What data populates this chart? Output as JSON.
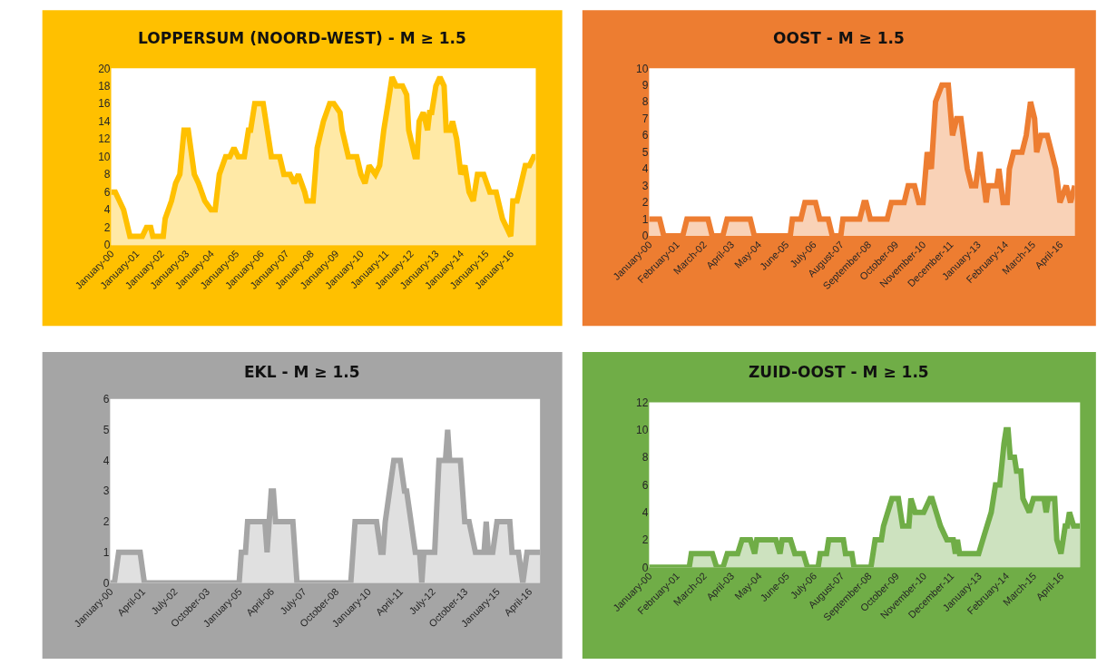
{
  "chart_data": [
    {
      "type": "area",
      "title": "LOPPERSUM (NOORD-WEST) - M ≥ 1.5",
      "xlim": [
        "2000-01",
        "2017-01"
      ],
      "ylim": [
        0,
        20
      ],
      "yticks": [
        0,
        2,
        4,
        6,
        8,
        10,
        12,
        14,
        16,
        18,
        20
      ],
      "xticks": [
        {
          "value": "2000-01",
          "label": "January-00"
        },
        {
          "value": "2001-01",
          "label": "January-01"
        },
        {
          "value": "2002-01",
          "label": "January-02"
        },
        {
          "value": "2003-01",
          "label": "January-03"
        },
        {
          "value": "2004-01",
          "label": "January-04"
        },
        {
          "value": "2005-01",
          "label": "January-05"
        },
        {
          "value": "2006-01",
          "label": "January-06"
        },
        {
          "value": "2007-01",
          "label": "January-07"
        },
        {
          "value": "2008-01",
          "label": "January-08"
        },
        {
          "value": "2009-01",
          "label": "January-09"
        },
        {
          "value": "2010-01",
          "label": "January-10"
        },
        {
          "value": "2011-01",
          "label": "January-11"
        },
        {
          "value": "2012-01",
          "label": "January-12"
        },
        {
          "value": "2013-01",
          "label": "January-13"
        },
        {
          "value": "2014-01",
          "label": "January-14"
        },
        {
          "value": "2015-01",
          "label": "January-15"
        },
        {
          "value": "2016-01",
          "label": "January-16"
        }
      ],
      "series": [
        {
          "color": "#ffc000",
          "x": [
            "2000-01",
            "2000-03",
            "2000-07",
            "2000-10",
            "2001-04",
            "2001-06",
            "2001-08",
            "2001-09",
            "2002-02",
            "2002-03",
            "2002-06",
            "2002-08",
            "2002-10",
            "2002-12",
            "2003-02",
            "2003-05",
            "2003-07",
            "2003-10",
            "2004-01",
            "2004-03",
            "2004-05",
            "2004-08",
            "2004-10",
            "2004-12",
            "2005-02",
            "2005-05",
            "2005-07",
            "2005-08",
            "2005-10",
            "2006-02",
            "2006-06",
            "2006-10",
            "2006-12",
            "2007-03",
            "2007-05",
            "2007-07",
            "2007-10",
            "2007-11",
            "2008-02",
            "2008-04",
            "2008-07",
            "2008-10",
            "2008-12",
            "2009-03",
            "2009-04",
            "2009-07",
            "2009-11",
            "2010-01",
            "2010-03",
            "2010-05",
            "2010-08",
            "2010-10",
            "2010-12",
            "2011-02",
            "2011-04",
            "2011-06",
            "2011-09",
            "2011-11",
            "2011-12",
            "2012-03",
            "2012-04",
            "2012-05",
            "2012-07",
            "2012-09",
            "2012-10",
            "2012-11",
            "2013-01",
            "2013-03",
            "2013-05",
            "2013-06",
            "2013-08",
            "2013-09",
            "2013-11",
            "2014-01",
            "2014-03",
            "2014-05",
            "2014-07",
            "2014-09",
            "2014-12",
            "2015-03",
            "2015-06",
            "2015-09",
            "2015-11",
            "2016-01",
            "2016-02",
            "2016-04",
            "2016-06",
            "2016-08",
            "2016-10",
            "2016-12",
            "2017-01"
          ],
          "values": [
            6,
            6,
            4,
            1,
            1,
            2,
            2,
            1,
            1,
            3,
            5,
            7,
            8,
            13,
            13,
            8,
            7,
            5,
            4,
            4,
            8,
            10,
            10,
            11,
            10,
            10,
            13,
            13,
            16,
            16,
            10,
            10,
            8,
            8,
            7,
            8,
            6,
            5,
            5,
            11,
            14,
            16,
            16,
            15,
            13,
            10,
            10,
            8,
            7,
            9,
            8,
            9,
            13,
            16,
            19,
            18,
            18,
            17,
            13,
            10,
            10,
            14,
            15,
            13,
            15,
            15,
            18,
            19,
            18,
            13,
            13,
            14,
            12,
            8,
            9,
            6,
            5,
            8,
            8,
            6,
            6,
            3,
            2,
            1,
            5,
            5,
            7,
            9,
            9,
            10,
            10
          ]
        }
      ]
    },
    {
      "type": "area",
      "title": "OOST - M ≥ 1.5",
      "xlim": [
        "2000-01",
        "2016-11"
      ],
      "ylim": [
        0,
        10
      ],
      "yticks": [
        0,
        1,
        2,
        3,
        4,
        5,
        6,
        7,
        8,
        9,
        10
      ],
      "xticks": [
        {
          "value": "2000-01",
          "label": "January-00"
        },
        {
          "value": "2001-02",
          "label": "February-01"
        },
        {
          "value": "2002-03",
          "label": "March-02"
        },
        {
          "value": "2003-04",
          "label": "April-03"
        },
        {
          "value": "2004-05",
          "label": "May-04"
        },
        {
          "value": "2005-06",
          "label": "June-05"
        },
        {
          "value": "2006-07",
          "label": "July-06"
        },
        {
          "value": "2007-08",
          "label": "August-07"
        },
        {
          "value": "2008-09",
          "label": "September-08"
        },
        {
          "value": "2009-10",
          "label": "October-09"
        },
        {
          "value": "2010-11",
          "label": "November-10"
        },
        {
          "value": "2011-12",
          "label": "December-11"
        },
        {
          "value": "2013-01",
          "label": "January-13"
        },
        {
          "value": "2014-02",
          "label": "February-14"
        },
        {
          "value": "2015-03",
          "label": "March-15"
        },
        {
          "value": "2016-04",
          "label": "April-16"
        }
      ],
      "series": [
        {
          "color": "#ed7d31",
          "x": [
            "2000-01",
            "2000-06",
            "2000-08",
            "2001-05",
            "2001-07",
            "2002-05",
            "2002-07",
            "2002-12",
            "2003-02",
            "2004-01",
            "2004-03",
            "2005-08",
            "2005-09",
            "2006-01",
            "2006-03",
            "2006-08",
            "2006-10",
            "2007-02",
            "2007-04",
            "2007-08",
            "2007-09",
            "2008-05",
            "2008-07",
            "2008-08",
            "2008-10",
            "2009-06",
            "2009-08",
            "2010-02",
            "2010-04",
            "2010-07",
            "2010-09",
            "2010-11",
            "2011-01",
            "2011-03",
            "2011-05",
            "2011-08",
            "2011-11",
            "2012-01",
            "2012-03",
            "2012-05",
            "2012-07",
            "2012-08",
            "2012-10",
            "2012-12",
            "2013-02",
            "2013-03",
            "2013-05",
            "2013-06",
            "2013-10",
            "2013-11",
            "2014-01",
            "2014-03",
            "2014-04",
            "2014-06",
            "2014-10",
            "2014-12",
            "2015-02",
            "2015-04",
            "2015-05",
            "2015-07",
            "2015-10",
            "2016-02",
            "2016-04",
            "2016-07",
            "2016-09",
            "2016-11"
          ],
          "values": [
            1,
            1,
            0,
            0,
            1,
            1,
            0,
            0,
            1,
            1,
            0,
            0,
            1,
            1,
            2,
            2,
            1,
            1,
            0,
            0,
            1,
            1,
            2,
            2,
            1,
            1,
            2,
            2,
            3,
            3,
            2,
            2,
            5,
            4,
            8,
            9,
            9,
            6,
            7,
            7,
            5,
            4,
            3,
            3,
            5,
            4,
            2,
            3,
            3,
            4,
            2,
            2,
            4,
            5,
            5,
            6,
            8,
            7,
            5,
            6,
            6,
            4,
            2,
            3,
            2,
            3
          ]
        }
      ]
    },
    {
      "type": "area",
      "title": "EKL - M ≥ 1.5",
      "xlim": [
        "2000-01",
        "2016-09"
      ],
      "ylim": [
        0,
        6
      ],
      "yticks": [
        0,
        1,
        2,
        3,
        4,
        5,
        6
      ],
      "xticks": [
        {
          "value": "2000-01",
          "label": "January-00"
        },
        {
          "value": "2001-04",
          "label": "April-01"
        },
        {
          "value": "2002-07",
          "label": "July-02"
        },
        {
          "value": "2003-10",
          "label": "October-03"
        },
        {
          "value": "2005-01",
          "label": "January-05"
        },
        {
          "value": "2006-04",
          "label": "April-06"
        },
        {
          "value": "2007-07",
          "label": "July-07"
        },
        {
          "value": "2008-10",
          "label": "October-08"
        },
        {
          "value": "2010-01",
          "label": "January-10"
        },
        {
          "value": "2011-04",
          "label": "April-11"
        },
        {
          "value": "2012-07",
          "label": "July-12"
        },
        {
          "value": "2013-10",
          "label": "October-13"
        },
        {
          "value": "2015-01",
          "label": "January-15"
        },
        {
          "value": "2016-04",
          "label": "April-16"
        }
      ],
      "series": [
        {
          "color": "#a5a5a5",
          "x": [
            "2000-01",
            "2000-03",
            "2000-05",
            "2001-03",
            "2001-05",
            "2005-01",
            "2005-02",
            "2005-04",
            "2005-05",
            "2006-01",
            "2006-02",
            "2006-04",
            "2006-05",
            "2006-06",
            "2007-02",
            "2007-04",
            "2009-05",
            "2009-07",
            "2010-05",
            "2010-07",
            "2010-08",
            "2010-09",
            "2010-11",
            "2011-01",
            "2011-04",
            "2011-06",
            "2011-07",
            "2011-09",
            "2011-11",
            "2012-01",
            "2012-02",
            "2012-03",
            "2012-08",
            "2012-10",
            "2013-01",
            "2013-02",
            "2013-03",
            "2013-08",
            "2013-10",
            "2013-12",
            "2014-03",
            "2014-07",
            "2014-08",
            "2014-09",
            "2014-11",
            "2015-01",
            "2015-07",
            "2015-08",
            "2015-11",
            "2016-01",
            "2016-03",
            "2016-09"
          ],
          "values": [
            0,
            0,
            1,
            1,
            0,
            0,
            1,
            1,
            2,
            2,
            1,
            3,
            3,
            2,
            2,
            0,
            0,
            2,
            2,
            1,
            1,
            2,
            3,
            4,
            4,
            3,
            3,
            2,
            1,
            1,
            0,
            1,
            1,
            4,
            4,
            5,
            4,
            4,
            2,
            2,
            1,
            1,
            2,
            1,
            1,
            2,
            2,
            1,
            1,
            0,
            1,
            1
          ]
        }
      ]
    },
    {
      "type": "area",
      "title": "ZUID-OOST - M ≥ 1.5",
      "xlim": [
        "2000-01",
        "2017-01"
      ],
      "ylim": [
        0,
        12
      ],
      "yticks": [
        0,
        2,
        4,
        6,
        8,
        10,
        12
      ],
      "xticks": [
        {
          "value": "2000-01",
          "label": "January-00"
        },
        {
          "value": "2001-02",
          "label": "February-01"
        },
        {
          "value": "2002-03",
          "label": "March-02"
        },
        {
          "value": "2003-04",
          "label": "April-03"
        },
        {
          "value": "2004-05",
          "label": "May-04"
        },
        {
          "value": "2005-06",
          "label": "June-05"
        },
        {
          "value": "2006-07",
          "label": "July-06"
        },
        {
          "value": "2007-08",
          "label": "August-07"
        },
        {
          "value": "2008-09",
          "label": "September-08"
        },
        {
          "value": "2009-10",
          "label": "October-09"
        },
        {
          "value": "2010-11",
          "label": "November-10"
        },
        {
          "value": "2011-12",
          "label": "December-11"
        },
        {
          "value": "2013-01",
          "label": "January-13"
        },
        {
          "value": "2014-02",
          "label": "February-14"
        },
        {
          "value": "2015-03",
          "label": "March-15"
        },
        {
          "value": "2016-04",
          "label": "April-16"
        }
      ],
      "series": [
        {
          "color": "#70ad47",
          "x": [
            "2000-01",
            "2001-08",
            "2001-09",
            "2002-07",
            "2002-09",
            "2002-12",
            "2003-02",
            "2003-07",
            "2003-09",
            "2004-01",
            "2004-03",
            "2004-04",
            "2005-01",
            "2005-03",
            "2005-04",
            "2005-08",
            "2005-10",
            "2006-02",
            "2006-04",
            "2006-09",
            "2006-10",
            "2007-01",
            "2007-02",
            "2007-09",
            "2007-10",
            "2008-01",
            "2008-02",
            "2008-10",
            "2008-12",
            "2009-03",
            "2009-04",
            "2009-06",
            "2009-08",
            "2009-11",
            "2010-01",
            "2010-04",
            "2010-05",
            "2010-07",
            "2010-11",
            "2011-02",
            "2011-03",
            "2011-05",
            "2011-07",
            "2011-10",
            "2012-01",
            "2012-02",
            "2012-03",
            "2012-04",
            "2013-01",
            "2013-03",
            "2013-05",
            "2013-07",
            "2013-09",
            "2013-11",
            "2014-01",
            "2014-02",
            "2014-03",
            "2014-04",
            "2014-06",
            "2014-07",
            "2014-09",
            "2014-10",
            "2015-01",
            "2015-03",
            "2015-08",
            "2015-09",
            "2015-10",
            "2016-01",
            "2016-02",
            "2016-04",
            "2016-06",
            "2016-07",
            "2016-08",
            "2016-10",
            "2017-01"
          ],
          "values": [
            0,
            0,
            1,
            1,
            0,
            0,
            1,
            1,
            2,
            2,
            1,
            2,
            2,
            1,
            2,
            2,
            1,
            1,
            0,
            0,
            1,
            1,
            2,
            2,
            1,
            1,
            0,
            0,
            2,
            2,
            3,
            4,
            5,
            5,
            3,
            3,
            5,
            4,
            4,
            5,
            5,
            4,
            3,
            2,
            2,
            1,
            2,
            1,
            1,
            2,
            3,
            4,
            6,
            6,
            9,
            10,
            10,
            8,
            8,
            7,
            7,
            5,
            4,
            5,
            5,
            4,
            5,
            5,
            2,
            1,
            3,
            3,
            4,
            3,
            3
          ]
        }
      ]
    }
  ]
}
